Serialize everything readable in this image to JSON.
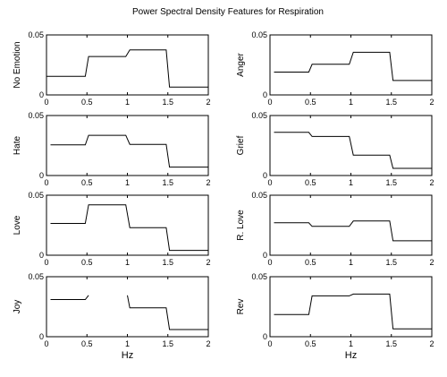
{
  "chart_data": {
    "type": "line",
    "title": "Power Spectral Density Features for Respiration",
    "xlim": [
      0,
      2
    ],
    "ylim": [
      0,
      0.05
    ],
    "x_ticks": [
      "0",
      "0.5",
      "1",
      "1.5",
      "2"
    ],
    "y_ticks": [
      "0",
      "0.05"
    ],
    "xlabel": "Hz",
    "panels": [
      {
        "ylabel": "No Emotion",
        "x": [
          0,
          0.48,
          0.52,
          0.98,
          1.03,
          1.48,
          1.52,
          2.0
        ],
        "y": [
          0.0155,
          0.0155,
          0.032,
          0.032,
          0.0375,
          0.0375,
          0.0065,
          0.0065
        ]
      },
      {
        "ylabel": "Anger",
        "x": [
          0.05,
          0.48,
          0.52,
          0.98,
          1.03,
          1.48,
          1.52,
          2.0
        ],
        "y": [
          0.019,
          0.019,
          0.0255,
          0.0255,
          0.0355,
          0.0355,
          0.012,
          0.012
        ]
      },
      {
        "ylabel": "Hate",
        "x": [
          0.05,
          0.48,
          0.52,
          0.98,
          1.03,
          1.48,
          1.52,
          2.0
        ],
        "y": [
          0.0255,
          0.0255,
          0.0335,
          0.0335,
          0.026,
          0.026,
          0.007,
          0.007
        ]
      },
      {
        "ylabel": "Grief",
        "x": [
          0.05,
          0.48,
          0.52,
          0.98,
          1.03,
          1.48,
          1.52,
          2.0
        ],
        "y": [
          0.036,
          0.036,
          0.0325,
          0.0325,
          0.017,
          0.017,
          0.006,
          0.006
        ]
      },
      {
        "ylabel": "Love",
        "x": [
          0.05,
          0.48,
          0.52,
          0.98,
          1.03,
          1.48,
          1.52,
          2.0
        ],
        "y": [
          0.0265,
          0.0265,
          0.042,
          0.042,
          0.023,
          0.023,
          0.004,
          0.004
        ]
      },
      {
        "ylabel": "R. Love",
        "x": [
          0.05,
          0.48,
          0.52,
          0.98,
          1.03,
          1.48,
          1.52,
          2.0
        ],
        "y": [
          0.027,
          0.027,
          0.024,
          0.024,
          0.0285,
          0.0285,
          0.012,
          0.012
        ]
      },
      {
        "ylabel": "Joy",
        "segments": [
          {
            "x": [
              0.05,
              0.48,
              0.52
            ],
            "y": [
              0.031,
              0.031,
              0.0345
            ]
          },
          {
            "x": [
              1.0,
              1.03,
              1.48,
              1.52,
              2.0
            ],
            "y": [
              0.0345,
              0.024,
              0.024,
              0.006,
              0.006
            ]
          }
        ]
      },
      {
        "ylabel": "Rev",
        "x": [
          0.05,
          0.48,
          0.52,
          0.98,
          1.03,
          1.48,
          1.52,
          2.0
        ],
        "y": [
          0.0185,
          0.0185,
          0.034,
          0.034,
          0.0355,
          0.0355,
          0.0065,
          0.0065
        ]
      }
    ],
    "grid": false,
    "legend": "none"
  }
}
